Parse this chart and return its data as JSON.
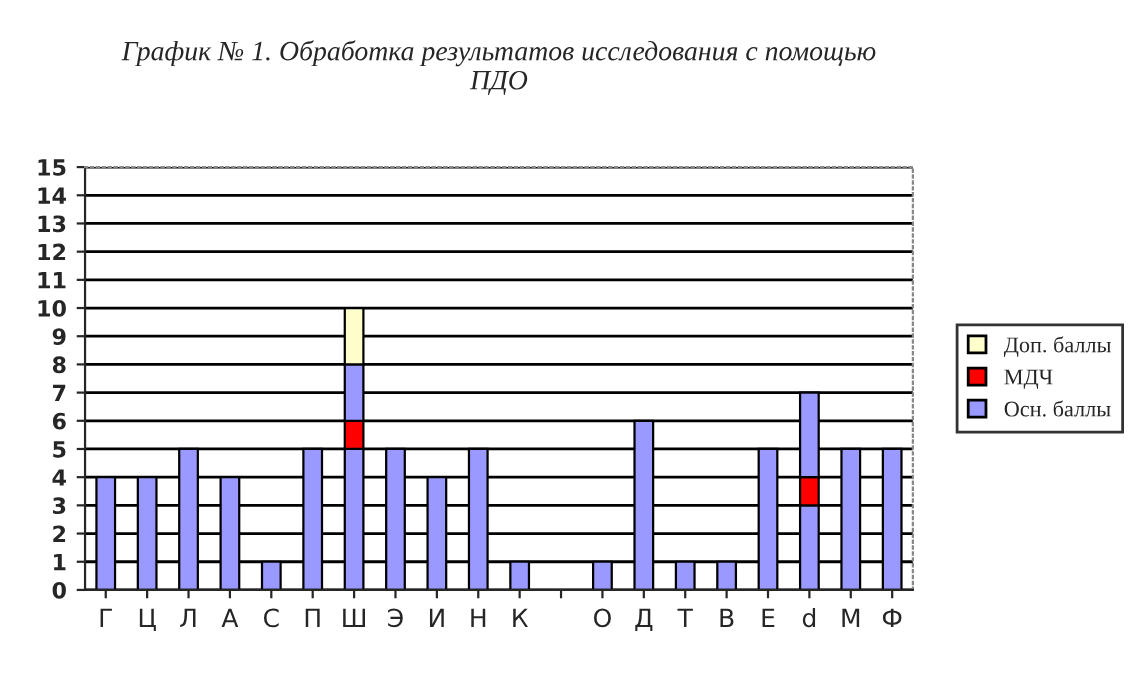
{
  "chart_data": {
    "type": "bar",
    "title": "График № 1. Обработка результатов исследования с помощью\nПДО",
    "categories": [
      "Г",
      "Ц",
      "Л",
      "А",
      "С",
      "П",
      "Ш",
      "Э",
      "И",
      "Н",
      "К",
      null,
      "О",
      "Д",
      "Т",
      "В",
      "Е",
      "d",
      "М",
      "Ф"
    ],
    "stacked": true,
    "series": [
      {
        "name": "Осн. баллы",
        "color": "#9999ff",
        "values": [
          4,
          4,
          5,
          4,
          1,
          5,
          5,
          5,
          4,
          5,
          1,
          0,
          1,
          6,
          1,
          1,
          5,
          3,
          5,
          5
        ]
      },
      {
        "name": "МДЧ",
        "color": "#ff0000",
        "values": [
          0,
          0,
          0,
          0,
          0,
          0,
          1,
          0,
          0,
          0,
          0,
          0,
          0,
          0,
          0,
          0,
          0,
          1,
          0,
          0
        ]
      },
      {
        "color": "#9999ff",
        "values": [
          0,
          0,
          0,
          0,
          0,
          0,
          2,
          0,
          0,
          0,
          0,
          0,
          0,
          0,
          0,
          0,
          0,
          3,
          0,
          0
        ]
      },
      {
        "name": "Доп. баллы",
        "color": "#ffffcc",
        "values": [
          0,
          0,
          0,
          0,
          0,
          0,
          2,
          0,
          0,
          0,
          0,
          0,
          0,
          0,
          0,
          0,
          0,
          0,
          0,
          0
        ]
      }
    ],
    "ylim": [
      0,
      15
    ],
    "yticks": [
      0,
      1,
      2,
      3,
      4,
      5,
      6,
      7,
      8,
      9,
      10,
      11,
      12,
      13,
      14,
      15
    ],
    "grid": "y",
    "legend": "right"
  }
}
